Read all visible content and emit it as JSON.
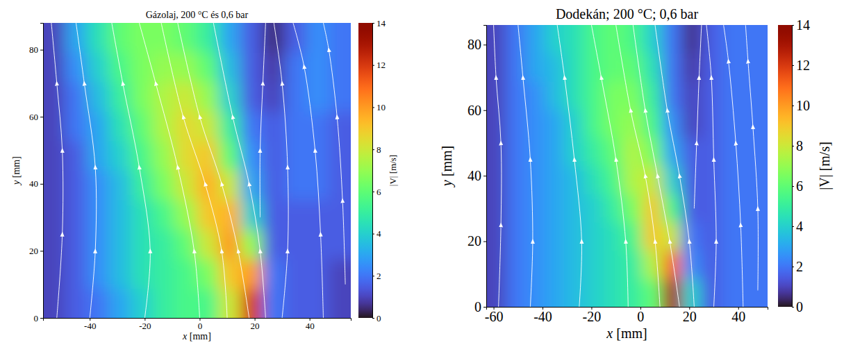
{
  "chart_data": [
    {
      "type": "heatmap",
      "title": "Gázolaj, 200 °C és 0,6 bar",
      "x_label": "x [mm]",
      "y_label": "y [mm]",
      "xlim": [
        -57,
        55
      ],
      "ylim": [
        0,
        88
      ],
      "xticks": [
        -40,
        -20,
        0,
        20,
        40
      ],
      "yticks": [
        0,
        20,
        40,
        60,
        80
      ],
      "cells": {
        "x": [
          -53,
          -45,
          -37,
          -29,
          -21,
          -13,
          -5,
          3,
          11,
          19,
          27,
          35,
          43,
          51
        ],
        "y": [
          4.4,
          13.2,
          22,
          30.8,
          39.6,
          48.4,
          57.2,
          66,
          74.8,
          83.6
        ],
        "values": [
          [
            1,
            1.5,
            2,
            3,
            4,
            5,
            5.5,
            5.5,
            8,
            12,
            2,
            1.5,
            1.5,
            1
          ],
          [
            1,
            1.5,
            2.5,
            3.5,
            4.5,
            5,
            5.5,
            6.5,
            9,
            10,
            2,
            1.5,
            1.5,
            1
          ],
          [
            1,
            1.5,
            2.5,
            3.5,
            4.5,
            5,
            6,
            8,
            10,
            7,
            1.5,
            1.5,
            1.5,
            1.5
          ],
          [
            1,
            1.5,
            2.5,
            3.5,
            4.5,
            5.5,
            7,
            9,
            9.5,
            4,
            1.5,
            1.5,
            1.5,
            1.5
          ],
          [
            1,
            1.5,
            2.5,
            3.5,
            5,
            6.5,
            8,
            9.5,
            8,
            3,
            1.5,
            2,
            2,
            1.5
          ],
          [
            1,
            1.5,
            3,
            4,
            5.5,
            7,
            8.5,
            9,
            6,
            2.5,
            1.5,
            2,
            2,
            1.5
          ],
          [
            1,
            2,
            3,
            4.5,
            6,
            7.5,
            8.5,
            8,
            5,
            2,
            1.5,
            2,
            2,
            1.5
          ],
          [
            1,
            2,
            3.5,
            5,
            6.5,
            7.5,
            8,
            7,
            4,
            1.5,
            1,
            2,
            2.5,
            2
          ],
          [
            1,
            2.5,
            4,
            5.5,
            6.5,
            7,
            7,
            6,
            3.5,
            1.5,
            0.8,
            2,
            2.5,
            2
          ],
          [
            1,
            3,
            4.5,
            6,
            6.5,
            6.5,
            6,
            5,
            3,
            1.5,
            0.5,
            1.5,
            2.5,
            2
          ]
        ]
      },
      "colorbar": {
        "label": "|V| [m/s]",
        "range": [
          0,
          14
        ],
        "ticks": [
          0,
          2,
          4,
          6,
          8,
          10,
          12,
          14
        ]
      },
      "streamlines": [
        {
          "x": [
            18,
            14,
            8,
            0,
            -8
          ],
          "y": [
            0,
            20,
            40,
            60,
            88
          ]
        },
        {
          "x": [
            10,
            8,
            2,
            -6,
            -14
          ],
          "y": [
            0,
            20,
            40,
            60,
            88
          ]
        },
        {
          "x": [
            0,
            -2,
            -8,
            -16,
            -22
          ],
          "y": [
            0,
            20,
            45,
            70,
            88
          ]
        },
        {
          "x": [
            -20,
            -18,
            -22,
            -28,
            -32
          ],
          "y": [
            0,
            20,
            45,
            70,
            88
          ]
        },
        {
          "x": [
            -40,
            -38,
            -38,
            -42,
            -45
          ],
          "y": [
            0,
            20,
            45,
            70,
            88
          ]
        },
        {
          "x": [
            -52,
            -50,
            -50,
            -52,
            -54
          ],
          "y": [
            0,
            25,
            50,
            70,
            88
          ]
        },
        {
          "x": [
            24,
            22,
            18,
            12,
            5
          ],
          "y": [
            0,
            20,
            40,
            60,
            88
          ]
        },
        {
          "x": [
            30,
            32,
            32,
            30,
            27
          ],
          "y": [
            0,
            20,
            45,
            70,
            88
          ]
        },
        {
          "x": [
            45,
            44,
            42,
            38,
            34
          ],
          "y": [
            0,
            25,
            50,
            75,
            88
          ]
        },
        {
          "x": [
            53,
            52,
            50,
            47,
            45
          ],
          "y": [
            10,
            35,
            60,
            80,
            88
          ]
        },
        {
          "x": [
            22,
            22,
            23,
            24
          ],
          "y": [
            30,
            50,
            70,
            88
          ]
        }
      ]
    },
    {
      "type": "heatmap",
      "title": "Dodekán; 200 °C; 0,6 bar",
      "x_label": "x [mm]",
      "y_label": "y [mm]",
      "xlim": [
        -63,
        52
      ],
      "ylim": [
        0,
        86
      ],
      "xticks": [
        -60,
        -40,
        -20,
        0,
        20,
        40
      ],
      "yticks": [
        0,
        20,
        40,
        60,
        80
      ],
      "cells": {
        "x": [
          -59,
          -51,
          -43,
          -35,
          -27,
          -19,
          -11,
          -3,
          5,
          13,
          21,
          29,
          37,
          45
        ],
        "y": [
          4.3,
          12.9,
          21.5,
          30.1,
          38.7,
          47.3,
          55.9,
          64.5,
          73.1,
          81.7
        ],
        "values": [
          [
            1,
            2,
            2.5,
            3,
            3.5,
            4,
            4.5,
            5,
            6,
            13,
            4,
            1.5,
            2,
            2
          ],
          [
            1,
            2,
            2.5,
            3,
            3.5,
            4,
            4.5,
            5,
            7.5,
            11,
            2.5,
            1.5,
            2,
            2
          ],
          [
            1,
            2,
            2.5,
            3,
            3.5,
            4,
            4.5,
            5.5,
            9,
            8,
            2,
            1.5,
            2,
            2
          ],
          [
            1,
            2,
            2.5,
            3,
            3.5,
            4,
            5,
            6.5,
            9,
            5.5,
            1.5,
            1.5,
            2,
            2
          ],
          [
            1,
            2,
            2.5,
            3,
            3.5,
            4.5,
            5.5,
            7.5,
            8,
            4,
            1.5,
            1.5,
            2,
            2
          ],
          [
            1,
            2,
            2.5,
            3,
            4,
            5,
            6,
            7.5,
            6.5,
            3,
            1.5,
            1.5,
            2,
            2
          ],
          [
            1,
            2,
            2.5,
            3,
            4,
            5.5,
            6.5,
            7,
            5.5,
            2.5,
            1,
            1.5,
            2,
            2
          ],
          [
            1,
            2,
            2.5,
            3.5,
            4.5,
            5.5,
            6.5,
            6.5,
            5,
            2,
            1,
            1.5,
            2,
            2
          ],
          [
            1,
            2,
            3,
            3.5,
            4.5,
            5.5,
            6,
            6,
            4.5,
            2,
            0.8,
            1.5,
            2,
            2
          ],
          [
            1,
            2,
            3,
            4,
            4.5,
            5.5,
            6,
            5.5,
            4,
            2,
            0.6,
            1.5,
            2,
            2
          ]
        ]
      },
      "colorbar": {
        "label": "|V| [m/s]",
        "range": [
          0,
          14
        ],
        "ticks": [
          0,
          2,
          4,
          6,
          8,
          10,
          12,
          14
        ]
      },
      "streamlines": [
        {
          "x": [
            16,
            12,
            7,
            2,
            -3
          ],
          "y": [
            0,
            20,
            40,
            60,
            86
          ]
        },
        {
          "x": [
            8,
            6,
            2,
            -4,
            -10
          ],
          "y": [
            0,
            20,
            40,
            60,
            86
          ]
        },
        {
          "x": [
            -5,
            -6,
            -10,
            -16,
            -20
          ],
          "y": [
            0,
            20,
            45,
            70,
            86
          ]
        },
        {
          "x": [
            -25,
            -24,
            -27,
            -31,
            -34
          ],
          "y": [
            0,
            20,
            45,
            70,
            86
          ]
        },
        {
          "x": [
            -45,
            -44,
            -45,
            -48,
            -50
          ],
          "y": [
            0,
            20,
            45,
            70,
            86
          ]
        },
        {
          "x": [
            -58,
            -57,
            -57,
            -59,
            -60
          ],
          "y": [
            0,
            25,
            50,
            70,
            86
          ]
        },
        {
          "x": [
            22,
            20,
            16,
            11,
            6
          ],
          "y": [
            0,
            20,
            40,
            60,
            86
          ]
        },
        {
          "x": [
            30,
            31,
            30,
            29,
            27
          ],
          "y": [
            0,
            20,
            45,
            70,
            86
          ]
        },
        {
          "x": [
            42,
            41,
            39,
            36,
            34
          ],
          "y": [
            0,
            25,
            50,
            75,
            86
          ]
        },
        {
          "x": [
            48,
            48,
            46,
            44,
            43
          ],
          "y": [
            5,
            30,
            55,
            75,
            86
          ]
        },
        {
          "x": [
            22,
            23,
            24,
            25
          ],
          "y": [
            30,
            50,
            70,
            86
          ]
        }
      ]
    }
  ]
}
